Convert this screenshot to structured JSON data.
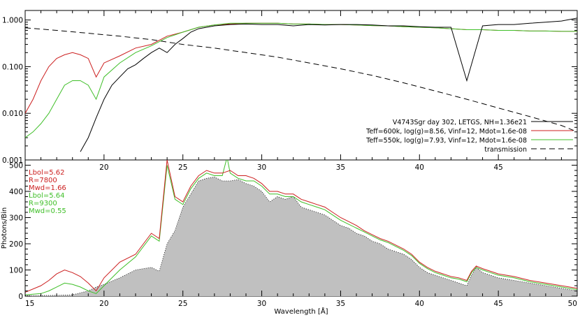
{
  "colors": {
    "observed": "#000000",
    "model_600k": "#cc1f1f",
    "model_550k": "#3fbf28",
    "transmission": "#000000",
    "fill": "#c0c0c0",
    "annot_red": "#cc1f1f",
    "annot_green": "#3fbf28"
  },
  "chart_data": [
    {
      "type": "line",
      "panel": "top",
      "xlim": [
        15,
        50
      ],
      "ylim": [
        0.001,
        1.6
      ],
      "yscale": "log",
      "y_ticks": [
        0.001,
        0.01,
        0.1,
        1.0
      ],
      "y_tick_labels": [
        "0.001",
        "0.010",
        "0.100",
        "1.000"
      ],
      "x_ticks": [
        20,
        25,
        30,
        35,
        40,
        45
      ],
      "x_tick_labels": [
        "20",
        "25",
        "30",
        "35",
        "40",
        "45"
      ],
      "legend": {
        "position": "lower-right",
        "entries": [
          {
            "label": "V4743Sgr day 302, LETGS, NH=1.36e21",
            "color": "#000000",
            "style": "solid"
          },
          {
            "label": "Teff=600k, log(g)=8.56, Vinf=12, Mdot=1.6e-08",
            "color": "#cc1f1f",
            "style": "solid"
          },
          {
            "label": "Teff=550k, log(g)=7.93, Vinf=12, Mdot=1.6e-08",
            "color": "#3fbf28",
            "style": "solid"
          },
          {
            "label": "transmission",
            "color": "#000000",
            "style": "dashed"
          }
        ]
      },
      "series": [
        {
          "name": "V4743Sgr day 302, LETGS, NH=1.36e21",
          "x": [
            18.5,
            19,
            19.5,
            20,
            20.5,
            21,
            21.5,
            22,
            22.5,
            23,
            23.5,
            24,
            24.5,
            25,
            25.5,
            26,
            27,
            28,
            29,
            30,
            31,
            32,
            33,
            34,
            35,
            36,
            37,
            38,
            39,
            40,
            41,
            42,
            43,
            44,
            45,
            46,
            47,
            48,
            49,
            50
          ],
          "y": [
            0.0015,
            0.003,
            0.008,
            0.02,
            0.04,
            0.06,
            0.09,
            0.11,
            0.15,
            0.2,
            0.25,
            0.2,
            0.3,
            0.4,
            0.55,
            0.65,
            0.75,
            0.8,
            0.82,
            0.8,
            0.8,
            0.75,
            0.8,
            0.78,
            0.8,
            0.8,
            0.78,
            0.75,
            0.75,
            0.72,
            0.7,
            0.7,
            0.05,
            0.75,
            0.8,
            0.8,
            0.85,
            0.9,
            0.95,
            1.1
          ]
        },
        {
          "name": "Teff=600k, log(g)=8.56, Vinf=12, Mdot=1.6e-08",
          "x": [
            15,
            15.5,
            16,
            16.5,
            17,
            17.5,
            18,
            18.5,
            19,
            19.5,
            20,
            21,
            22,
            23,
            24,
            25,
            26,
            27,
            28,
            29,
            30,
            31,
            32,
            33,
            34,
            35,
            36,
            37,
            38,
            39,
            40,
            41,
            42,
            43,
            44,
            45,
            46,
            47,
            48,
            49,
            50
          ],
          "y": [
            0.01,
            0.02,
            0.05,
            0.1,
            0.15,
            0.18,
            0.2,
            0.18,
            0.15,
            0.06,
            0.12,
            0.17,
            0.25,
            0.3,
            0.45,
            0.55,
            0.7,
            0.78,
            0.82,
            0.85,
            0.85,
            0.85,
            0.82,
            0.82,
            0.8,
            0.8,
            0.78,
            0.76,
            0.75,
            0.72,
            0.7,
            0.68,
            0.65,
            0.62,
            0.62,
            0.6,
            0.6,
            0.58,
            0.58,
            0.57,
            0.57
          ]
        },
        {
          "name": "Teff=550k, log(g)=7.93, Vinf=12, Mdot=1.6e-08",
          "x": [
            15,
            15.5,
            16,
            16.5,
            17,
            17.5,
            18,
            18.5,
            19,
            19.5,
            20,
            21,
            22,
            23,
            24,
            25,
            26,
            27,
            28,
            29,
            30,
            31,
            32,
            33,
            34,
            35,
            36,
            37,
            38,
            39,
            40,
            41,
            42,
            43,
            44,
            45,
            46,
            47,
            48,
            49,
            50
          ],
          "y": [
            0.003,
            0.004,
            0.006,
            0.01,
            0.02,
            0.04,
            0.05,
            0.05,
            0.04,
            0.02,
            0.06,
            0.12,
            0.2,
            0.28,
            0.42,
            0.55,
            0.7,
            0.78,
            0.85,
            0.85,
            0.85,
            0.85,
            0.82,
            0.82,
            0.8,
            0.8,
            0.78,
            0.76,
            0.75,
            0.72,
            0.7,
            0.68,
            0.65,
            0.62,
            0.62,
            0.6,
            0.6,
            0.58,
            0.58,
            0.57,
            0.57
          ]
        },
        {
          "name": "transmission",
          "x": [
            15,
            17,
            19,
            21,
            23,
            25,
            27,
            29,
            31,
            33,
            35,
            37,
            39,
            41,
            43,
            45,
            47,
            49,
            50
          ],
          "y": [
            0.68,
            0.6,
            0.52,
            0.45,
            0.38,
            0.3,
            0.25,
            0.2,
            0.16,
            0.12,
            0.09,
            0.065,
            0.045,
            0.03,
            0.02,
            0.013,
            0.0085,
            0.0055,
            0.004
          ]
        }
      ]
    },
    {
      "type": "area",
      "panel": "bottom",
      "xlim": [
        15,
        50
      ],
      "ylim": [
        0,
        520
      ],
      "xlabel": "Wavelength [Å]",
      "ylabel": "Photons/Bin",
      "y_ticks": [
        0,
        100,
        200,
        300,
        400,
        500
      ],
      "y_tick_labels": [
        "0",
        "100",
        "200",
        "300",
        "400",
        "500"
      ],
      "x_ticks": [
        15,
        20,
        25,
        30,
        35,
        40,
        45,
        50
      ],
      "x_tick_labels": [
        "15",
        "20",
        "25",
        "30",
        "35",
        "40",
        "45",
        "50"
      ],
      "annotations": [
        {
          "text": "Lbol=5.62",
          "color": "#cc1f1f"
        },
        {
          "text": "R=7800",
          "color": "#cc1f1f"
        },
        {
          "text": "Mwd=1.66",
          "color": "#cc1f1f"
        },
        {
          "text": "Lbol=5.64",
          "color": "#3fbf28"
        },
        {
          "text": "R=9300",
          "color": "#3fbf28"
        },
        {
          "text": "Mwd=0.55",
          "color": "#3fbf28"
        }
      ],
      "series": [
        {
          "name": "V4743Sgr day 302, LETGS, NH=1.36e21",
          "style": "filled",
          "x": [
            15,
            17,
            18,
            19,
            19.5,
            20,
            21,
            22,
            23,
            23.5,
            24,
            24.5,
            25,
            25.5,
            26,
            26.5,
            27,
            27.5,
            28,
            28.5,
            29,
            29.5,
            30,
            30.5,
            31,
            31.5,
            32,
            32.5,
            33,
            33.5,
            34,
            34.5,
            35,
            35.5,
            36,
            36.5,
            37,
            37.5,
            38,
            38.5,
            39,
            39.5,
            40,
            40.5,
            41,
            41.5,
            42,
            42.5,
            43,
            43.3,
            43.6,
            44,
            44.5,
            45,
            46,
            47,
            48,
            49,
            50
          ],
          "y": [
            2,
            3,
            5,
            20,
            35,
            45,
            70,
            100,
            110,
            95,
            200,
            250,
            340,
            390,
            440,
            450,
            455,
            440,
            440,
            445,
            430,
            420,
            400,
            360,
            380,
            370,
            380,
            340,
            330,
            320,
            310,
            290,
            270,
            260,
            240,
            230,
            210,
            200,
            180,
            170,
            160,
            140,
            110,
            90,
            80,
            70,
            60,
            50,
            40,
            80,
            110,
            90,
            80,
            70,
            60,
            50,
            40,
            30,
            20
          ]
        },
        {
          "name": "Teff=600k, log(g)=8.56, Vinf=12, Mdot=1.6e-08",
          "x": [
            15,
            16,
            16.5,
            17,
            17.5,
            18,
            18.5,
            19,
            19.5,
            20,
            21,
            22,
            23,
            23.5,
            24,
            24.5,
            25,
            25.5,
            26,
            26.5,
            27,
            27.5,
            28,
            28.5,
            29,
            29.5,
            30,
            30.5,
            31,
            31.5,
            32,
            32.5,
            33,
            33.5,
            34,
            34.5,
            35,
            35.5,
            36,
            36.5,
            37,
            37.5,
            38,
            38.5,
            39,
            39.5,
            40,
            40.5,
            41,
            41.5,
            42,
            42.5,
            43,
            43.3,
            43.6,
            44,
            44.5,
            45,
            46,
            47,
            48,
            49,
            50
          ],
          "y": [
            15,
            40,
            60,
            85,
            100,
            90,
            75,
            50,
            20,
            70,
            130,
            160,
            240,
            220,
            520,
            380,
            360,
            420,
            460,
            480,
            470,
            470,
            480,
            460,
            460,
            450,
            430,
            400,
            400,
            390,
            390,
            370,
            360,
            350,
            340,
            320,
            300,
            285,
            270,
            250,
            235,
            220,
            210,
            195,
            180,
            160,
            130,
            110,
            95,
            85,
            75,
            70,
            60,
            95,
            115,
            105,
            95,
            85,
            75,
            60,
            50,
            40,
            30
          ]
        },
        {
          "name": "Teff=550k, log(g)=7.93, Vinf=12, Mdot=1.6e-08",
          "x": [
            15,
            16,
            16.5,
            17,
            17.5,
            18,
            18.5,
            19,
            19.5,
            20,
            21,
            22,
            23,
            23.5,
            24,
            24.5,
            25,
            25.5,
            26,
            26.5,
            27,
            27.5,
            27.8,
            28,
            28.5,
            29,
            29.5,
            30,
            30.5,
            31,
            31.5,
            32,
            32.5,
            33,
            33.5,
            34,
            34.5,
            35,
            35.5,
            36,
            36.5,
            37,
            37.5,
            38,
            38.5,
            39,
            39.5,
            40,
            40.5,
            41,
            41.5,
            42,
            42.5,
            43,
            43.3,
            43.6,
            44,
            44.5,
            45,
            46,
            47,
            48,
            49,
            50
          ],
          "y": [
            5,
            10,
            20,
            35,
            50,
            45,
            35,
            20,
            10,
            40,
            100,
            150,
            230,
            210,
            500,
            370,
            350,
            410,
            450,
            470,
            460,
            460,
            530,
            470,
            450,
            440,
            440,
            420,
            390,
            390,
            380,
            380,
            360,
            350,
            340,
            330,
            310,
            290,
            275,
            260,
            245,
            230,
            215,
            205,
            190,
            175,
            155,
            125,
            105,
            90,
            80,
            70,
            65,
            55,
            90,
            110,
            100,
            90,
            80,
            70,
            55,
            45,
            35,
            25
          ]
        }
      ]
    }
  ]
}
